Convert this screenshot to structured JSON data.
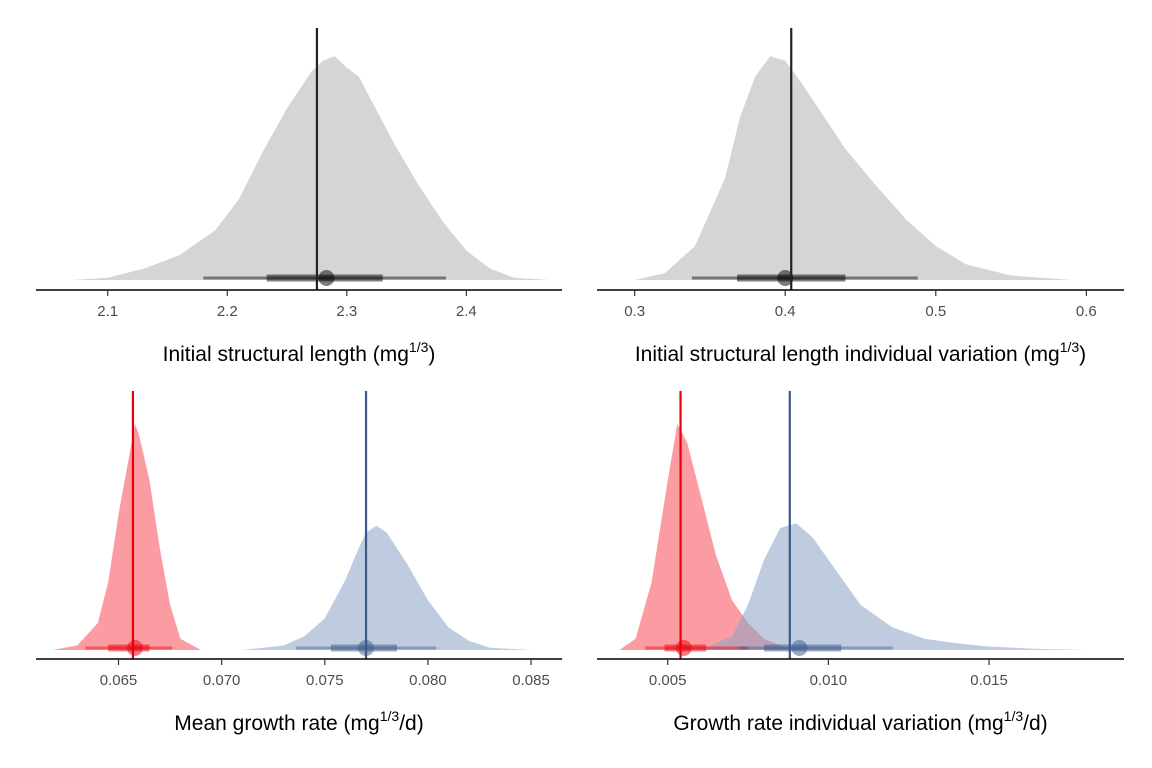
{
  "colors": {
    "grey": "#bebebe",
    "red": "#f54b55",
    "blue": "#8aa2c6",
    "red_line": "#e8000b",
    "blue_line": "#3b5a8a",
    "dark": "#222222"
  },
  "chart_data": [
    {
      "type": "area",
      "xlim": [
        2.04,
        2.48
      ],
      "ticks": [
        2.1,
        2.2,
        2.3,
        2.4
      ],
      "tick_labels": [
        "2.1",
        "2.2",
        "2.3",
        "2.4"
      ],
      "xlabel": {
        "main": "Initial structural length (mg",
        "sup": "1/3",
        "tail": ")"
      },
      "series": [
        {
          "color_key": "grey",
          "x": [
            2.07,
            2.1,
            2.13,
            2.16,
            2.19,
            2.21,
            2.23,
            2.25,
            2.27,
            2.28,
            2.29,
            2.3,
            2.31,
            2.32,
            2.34,
            2.36,
            2.38,
            2.4,
            2.42,
            2.44,
            2.47
          ],
          "density": [
            0.0,
            0.01,
            0.05,
            0.11,
            0.22,
            0.36,
            0.57,
            0.76,
            0.92,
            0.97,
            0.99,
            0.94,
            0.9,
            0.8,
            0.6,
            0.42,
            0.26,
            0.13,
            0.05,
            0.01,
            0.0
          ],
          "point": 2.283,
          "interval_inner": [
            2.233,
            2.33
          ],
          "interval_outer": [
            2.18,
            2.383
          ]
        }
      ],
      "refs": [
        {
          "x": 2.275,
          "color_key": "dark"
        }
      ]
    },
    {
      "type": "area",
      "xlim": [
        0.275,
        0.625
      ],
      "ticks": [
        0.3,
        0.4,
        0.5,
        0.6
      ],
      "tick_labels": [
        "0.3",
        "0.4",
        "0.5",
        "0.6"
      ],
      "xlabel": {
        "main": "Initial structural length individual variation (mg",
        "sup": "1/3",
        "tail": ")"
      },
      "series": [
        {
          "color_key": "grey",
          "x": [
            0.3,
            0.32,
            0.34,
            0.36,
            0.37,
            0.38,
            0.39,
            0.4,
            0.41,
            0.42,
            0.44,
            0.46,
            0.48,
            0.5,
            0.52,
            0.55,
            0.59
          ],
          "density": [
            0.0,
            0.03,
            0.15,
            0.45,
            0.72,
            0.9,
            0.99,
            0.97,
            0.88,
            0.78,
            0.58,
            0.42,
            0.27,
            0.15,
            0.07,
            0.02,
            0.0
          ],
          "point": 0.4,
          "interval_inner": [
            0.368,
            0.44
          ],
          "interval_outer": [
            0.338,
            0.488
          ]
        }
      ],
      "refs": [
        {
          "x": 0.404,
          "color_key": "dark"
        }
      ]
    },
    {
      "type": "area",
      "xlim": [
        0.061,
        0.0865
      ],
      "ticks": [
        0.065,
        0.07,
        0.075,
        0.08,
        0.085
      ],
      "tick_labels": [
        "0.065",
        "0.070",
        "0.075",
        "0.080",
        "0.085"
      ],
      "xlabel": {
        "main": "Mean growth rate (mg",
        "sup": "1/3",
        "tail": "/d)"
      },
      "series": [
        {
          "color_key": "red",
          "x": [
            0.0618,
            0.063,
            0.064,
            0.0645,
            0.065,
            0.0655,
            0.0658,
            0.066,
            0.0665,
            0.067,
            0.0675,
            0.068,
            0.069
          ],
          "density": [
            0.0,
            0.02,
            0.12,
            0.3,
            0.6,
            0.85,
            1.0,
            0.95,
            0.75,
            0.45,
            0.2,
            0.05,
            0.0
          ],
          "point": 0.0658,
          "interval_inner": [
            0.0645,
            0.0665
          ],
          "interval_outer": [
            0.0634,
            0.0676
          ]
        },
        {
          "color_key": "blue",
          "x": [
            0.071,
            0.073,
            0.074,
            0.075,
            0.076,
            0.0765,
            0.077,
            0.0775,
            0.078,
            0.079,
            0.08,
            0.081,
            0.082,
            0.083,
            0.085
          ],
          "density": [
            0.0,
            0.02,
            0.06,
            0.14,
            0.31,
            0.42,
            0.52,
            0.55,
            0.52,
            0.38,
            0.22,
            0.1,
            0.04,
            0.01,
            0.0
          ],
          "point": 0.077,
          "interval_inner": [
            0.0753,
            0.0785
          ],
          "interval_outer": [
            0.0736,
            0.0804
          ]
        }
      ],
      "refs": [
        {
          "x": 0.0657,
          "color_key": "red_line"
        },
        {
          "x": 0.077,
          "color_key": "blue_line"
        }
      ]
    },
    {
      "type": "area",
      "xlim": [
        0.0028,
        0.0192
      ],
      "ticks": [
        0.005,
        0.01,
        0.015
      ],
      "tick_labels": [
        "0.005",
        "0.010",
        "0.015"
      ],
      "xlabel": {
        "main": "Growth rate individual variation (mg",
        "sup": "1/3",
        "tail": "/d)"
      },
      "series": [
        {
          "color_key": "red",
          "x": [
            0.0035,
            0.004,
            0.0045,
            0.005,
            0.0053,
            0.0056,
            0.006,
            0.0065,
            0.007,
            0.0075,
            0.008,
            0.0085,
            0.009
          ],
          "density": [
            0.0,
            0.05,
            0.3,
            0.75,
            1.0,
            0.92,
            0.7,
            0.42,
            0.22,
            0.12,
            0.05,
            0.02,
            0.0
          ],
          "point": 0.0055,
          "interval_inner": [
            0.0049,
            0.0062
          ],
          "interval_outer": [
            0.0043,
            0.0075
          ]
        },
        {
          "color_key": "blue",
          "x": [
            0.006,
            0.007,
            0.0075,
            0.008,
            0.0085,
            0.009,
            0.0095,
            0.01,
            0.0105,
            0.011,
            0.012,
            0.013,
            0.014,
            0.015,
            0.0165,
            0.018
          ],
          "density": [
            0.0,
            0.06,
            0.2,
            0.4,
            0.54,
            0.56,
            0.5,
            0.4,
            0.3,
            0.2,
            0.1,
            0.05,
            0.03,
            0.015,
            0.005,
            0.0
          ],
          "point": 0.0091,
          "interval_inner": [
            0.008,
            0.0104
          ],
          "interval_outer": [
            0.0072,
            0.012
          ]
        }
      ],
      "refs": [
        {
          "x": 0.0054,
          "color_key": "red_line"
        },
        {
          "x": 0.0088,
          "color_key": "blue_line"
        }
      ]
    }
  ]
}
